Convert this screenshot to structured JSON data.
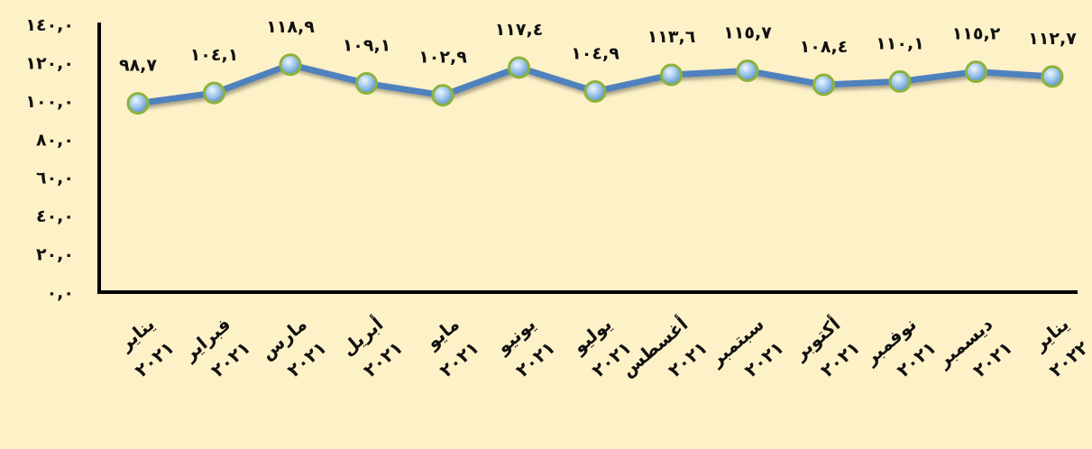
{
  "chart_data": {
    "type": "line",
    "title": "",
    "xlabel": "",
    "ylabel": "",
    "ylim": [
      0,
      140
    ],
    "grid": false,
    "legend": "none",
    "y_ticks": [
      0,
      20,
      40,
      60,
      80,
      100,
      120,
      140
    ],
    "y_tick_labels": [
      "٠,٠",
      "٢٠,٠",
      "٤٠,٠",
      "٦٠,٠",
      "٨٠,٠",
      "١٠٠,٠",
      "١٢٠,٠",
      "١٤٠,٠"
    ],
    "categories": [
      "يناير ٢٠٢١",
      "فبراير ٢٠٢١",
      "مارس ٢٠٢١",
      "أبريل ٢٠٢١",
      "مايو ٢٠٢١",
      "يونيو ٢٠٢١",
      "يوليو ٢٠٢١",
      "أغسطس ٢٠٢١",
      "سبتمبر ٢٠٢١",
      "أكتوبر ٢٠٢١",
      "نوفمبر ٢٠٢١",
      "ديسمبر ٢٠٢١",
      "يناير ٢٠٢٢"
    ],
    "category_lines": [
      [
        "يناير",
        "٢٠٢١"
      ],
      [
        "فبراير",
        "٢٠٢١"
      ],
      [
        "مارس",
        "٢٠٢١"
      ],
      [
        "أبريل",
        "٢٠٢١"
      ],
      [
        "مايو",
        "٢٠٢١"
      ],
      [
        "يونيو",
        "٢٠٢١"
      ],
      [
        "يوليو",
        "٢٠٢١"
      ],
      [
        "أغسطس",
        "٢٠٢١"
      ],
      [
        "سبتمبر",
        "٢٠٢١"
      ],
      [
        "أكتوبر",
        "٢٠٢١"
      ],
      [
        "نوفمبر",
        "٢٠٢١"
      ],
      [
        "ديسمبر",
        "٢٠٢١"
      ],
      [
        "يناير",
        "٢٠٢٢"
      ]
    ],
    "series": [
      {
        "values": [
          98.7,
          104.1,
          118.9,
          109.1,
          102.9,
          117.4,
          104.9,
          113.6,
          115.7,
          108.4,
          110.1,
          115.2,
          112.7
        ],
        "data_labels": [
          "٩٨,٧",
          "١٠٤,١",
          "١١٨,٩",
          "١٠٩,١",
          "١٠٢,٩",
          "١١٧,٤",
          "١٠٤,٩",
          "١١٣,٦",
          "١١٥,٧",
          "١٠٨,٤",
          "١١٠,١",
          "١١٥,٢",
          "١١٢,٧"
        ]
      }
    ],
    "colors": {
      "background": "#fdf1c8",
      "line": "#4f81bd",
      "marker_fill": "#9bc4ea",
      "marker_edge": "#8db33a",
      "axis": "#000000"
    }
  }
}
